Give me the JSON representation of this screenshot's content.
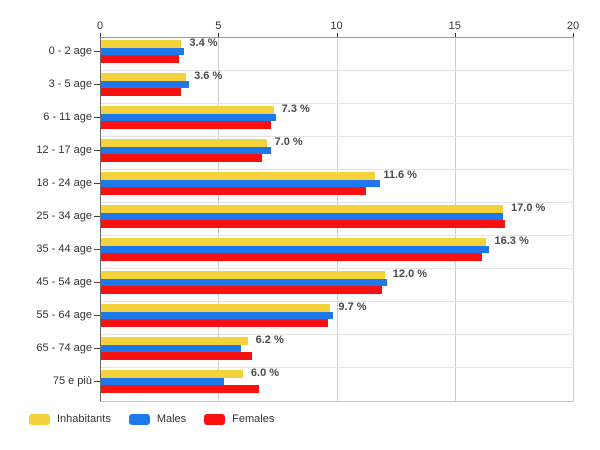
{
  "chart_data": {
    "type": "bar",
    "orientation": "horizontal",
    "title": "",
    "categories": [
      "0 - 2 age",
      "3 - 5 age",
      "6 - 11 age",
      "12 - 17 age",
      "18 - 24 age",
      "25 - 34 age",
      "35 - 44 age",
      "45 - 54 age",
      "55 - 64 age",
      "65 - 74 age",
      "75 e più"
    ],
    "series": [
      {
        "name": "Inhabitants",
        "color": "#f3d23c",
        "values": [
          3.4,
          3.6,
          7.3,
          7.0,
          11.6,
          17.0,
          16.3,
          12.0,
          9.7,
          6.2,
          6.0
        ]
      },
      {
        "name": "Males",
        "color": "#1d78eb",
        "values": [
          3.5,
          3.7,
          7.4,
          7.2,
          11.8,
          17.0,
          16.4,
          12.1,
          9.8,
          5.9,
          5.2
        ]
      },
      {
        "name": "Females",
        "color": "#fa100f",
        "values": [
          3.3,
          3.4,
          7.2,
          6.8,
          11.2,
          17.1,
          16.1,
          11.9,
          9.6,
          6.4,
          6.7
        ]
      }
    ],
    "value_labels": [
      "3.4 %",
      "3.6 %",
      "7.3 %",
      "7.0 %",
      "11.6 %",
      "17.0 %",
      "16.3 %",
      "12.0 %",
      "9.7 %",
      "6.2 %",
      "6.0 %"
    ],
    "xlim": [
      0,
      20
    ],
    "xticks": [
      "0",
      "5",
      "10",
      "15",
      "20"
    ],
    "grid": "vertical-and-row-separators",
    "legend_position": "bottom-left"
  },
  "colors": {
    "background": "#ffffff",
    "grid": "#cfcfcf",
    "row_separator": "#e4e4e4",
    "axis_text": "#333333",
    "value_label_text": "#4a4a4a"
  }
}
